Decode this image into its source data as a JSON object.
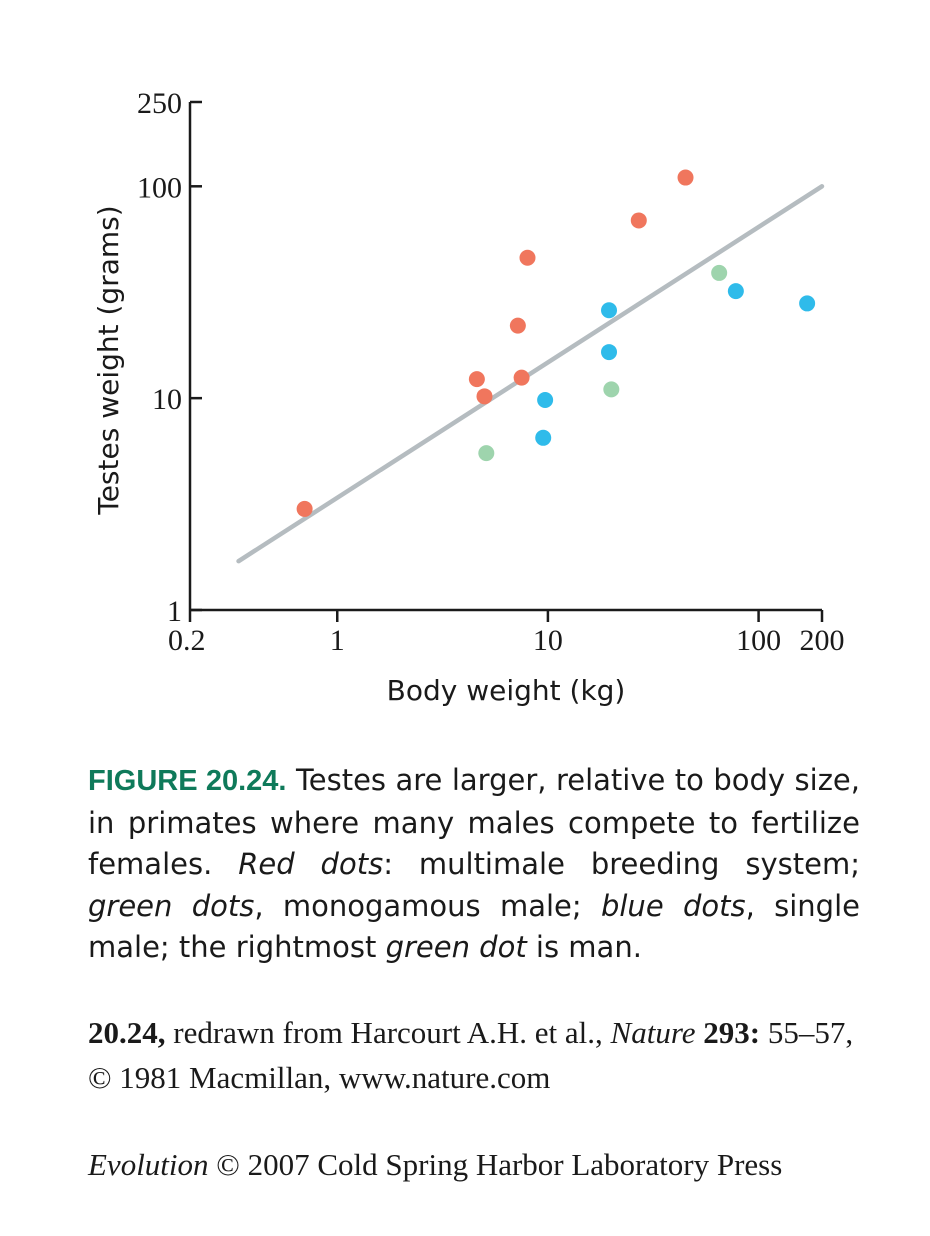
{
  "chart_data": {
    "type": "scatter",
    "xlabel": "Body weight (kg)",
    "ylabel": "Testes weight (grams)",
    "xscale": "log",
    "yscale": "log",
    "xlim": [
      0.2,
      200
    ],
    "ylim": [
      1,
      250
    ],
    "xticks": [
      {
        "value": 0.2,
        "label": "0.2"
      },
      {
        "value": 1,
        "label": "1"
      },
      {
        "value": 10,
        "label": "10"
      },
      {
        "value": 100,
        "label": "100"
      },
      {
        "value": 200,
        "label": "200"
      }
    ],
    "yticks": [
      {
        "value": 1,
        "label": "1"
      },
      {
        "value": 10,
        "label": "10"
      },
      {
        "value": 100,
        "label": "100"
      },
      {
        "value": 250,
        "label": "250"
      }
    ],
    "grid": false,
    "colors": {
      "red": "#f0765d",
      "green": "#9ed4ad",
      "blue": "#2fbbea",
      "line": "#b5bcc0"
    },
    "regression_line": {
      "x": [
        0.34,
        200
      ],
      "y": [
        1.7,
        100
      ]
    },
    "series": [
      {
        "key": "red",
        "x": [
          0.7,
          4.6,
          5.0,
          7.2,
          7.5,
          8.0,
          27,
          45
        ],
        "y": [
          3.0,
          12.3,
          10.2,
          22,
          12.5,
          46,
          69,
          110
        ]
      },
      {
        "key": "green",
        "x": [
          5.1,
          20,
          65
        ],
        "y": [
          5.5,
          11,
          39
        ]
      },
      {
        "key": "blue",
        "x": [
          9.5,
          9.7,
          19.5,
          19.5,
          78,
          170
        ],
        "y": [
          6.5,
          9.8,
          16.5,
          26,
          32,
          28
        ]
      }
    ]
  },
  "caption": {
    "label": "FIGURE 20.24.",
    "text_1": " Testes are larger, relative to body size, in primates where many males compete to fertilize females. ",
    "red_label": "Red dots",
    "text_2": ": multimale breeding system; ",
    "green_label": "green dots",
    "text_3": ", monogamous male; ",
    "blue_label": "blue dots",
    "text_4": ", single male; the rightmost ",
    "green_dot_label": "green dot",
    "text_5": " is man."
  },
  "credit": {
    "number": "20.24,",
    "text_1": " redrawn from Harcourt A.H. et al., ",
    "journal": "Nature",
    "volume": " 293:",
    "text_2": " 55–57, © 1981 Macmillan, www.nature.com"
  },
  "copyright": {
    "book": "Evolution",
    "text": " © 2007 Cold Spring Harbor Laboratory Press"
  }
}
